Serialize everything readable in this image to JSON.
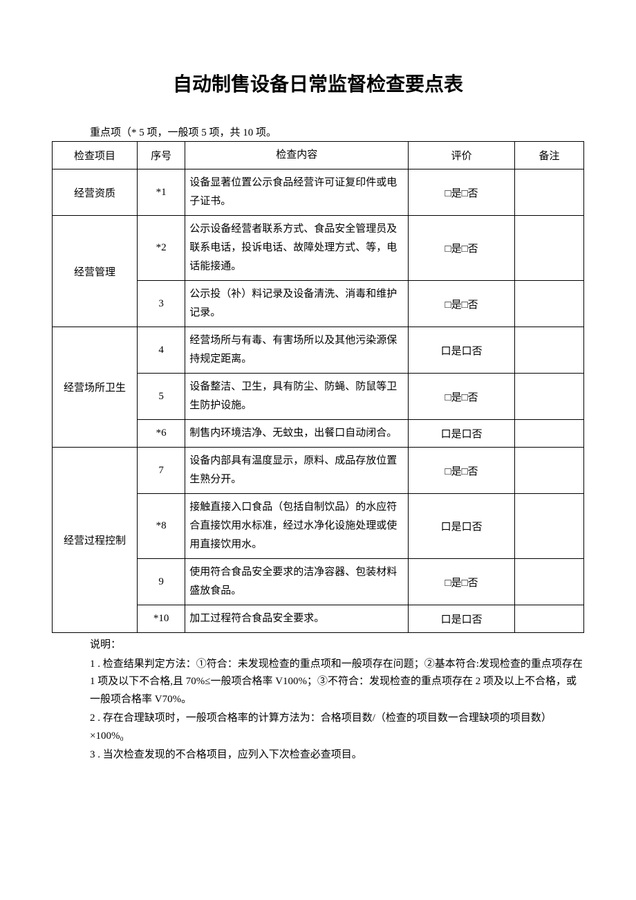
{
  "title": "自动制售设备日常监督检查要点表",
  "subtitle": "重点项（* 5 项，一般项 5 项，共 10 项。",
  "headers": {
    "category": "检查项目",
    "num": "序号",
    "content": "检查内容",
    "eval": "评价",
    "note": "备注"
  },
  "eval_text": "□是□否",
  "eval_text_alt": "口是口否",
  "categories": [
    {
      "name": "经营资质",
      "rows": [
        {
          "num": "*1",
          "content": "设备显著位置公示食品经营许可证复印件或电子证书。",
          "eval": "□是□否"
        }
      ]
    },
    {
      "name": "经营管理",
      "rows": [
        {
          "num": "*2",
          "content": "公示设备经营者联系方式、食品安全管理员及联系电话，投诉电话、故障处理方式、等，电话能接通。",
          "eval": "□是□否"
        },
        {
          "num": "3",
          "content": "公示投（补）料记录及设备清洗、消毒和维护记录。",
          "eval": "□是□否"
        }
      ]
    },
    {
      "name": "经营场所卫生",
      "rows": [
        {
          "num": "4",
          "content": "经营场所与有毒、有害场所以及其他污染源保持规定距离。",
          "eval": "口是口否"
        },
        {
          "num": "5",
          "content": "设备整洁、卫生，具有防尘、防蝇、防鼠等卫生防护设施。",
          "eval": "□是□否"
        },
        {
          "num": "*6",
          "content": "制售内环境洁净、无蚊虫，出餐口自动闭合。",
          "eval": "口是口否"
        }
      ]
    },
    {
      "name": "经营过程控制",
      "rows": [
        {
          "num": "7",
          "content": "设备内部具有温度显示，原料、成品存放位置生熟分开。",
          "eval": "□是□否"
        },
        {
          "num": "*8",
          "content": "接触直接入口食品（包括自制饮品）的水应符合直接饮用水标准，经过水净化设施处理或使用直接饮用水。",
          "eval": "口是口否"
        },
        {
          "num": "9",
          "content": "使用符合食品安全要求的洁净容器、包装材料盛放食品。",
          "eval": "□是□否"
        },
        {
          "num": "*10",
          "content": "加工过程符合食品安全要求。",
          "eval": "口是口否"
        }
      ]
    }
  ],
  "notes": {
    "label": "说明：",
    "items": [
      "1 . 检查结果判定方法：①符合：未发现检查的重点项和一般项存在问题；②基本符合:发现检查的重点项存在 1 项及以下不合格,且 70%≤一般项合格率 V100%；③不符合：发现检查的重点项存在 2 项及以上不合格，或一般项合格率 V70%。",
      "2 . 存在合理缺项时，一般项合格率的计算方法为：合格项目数/（检查的项目数一合理缺项的项目数）×100%₀",
      "3 . 当次检查发现的不合格项目，应列入下次检查必查项目。"
    ]
  }
}
